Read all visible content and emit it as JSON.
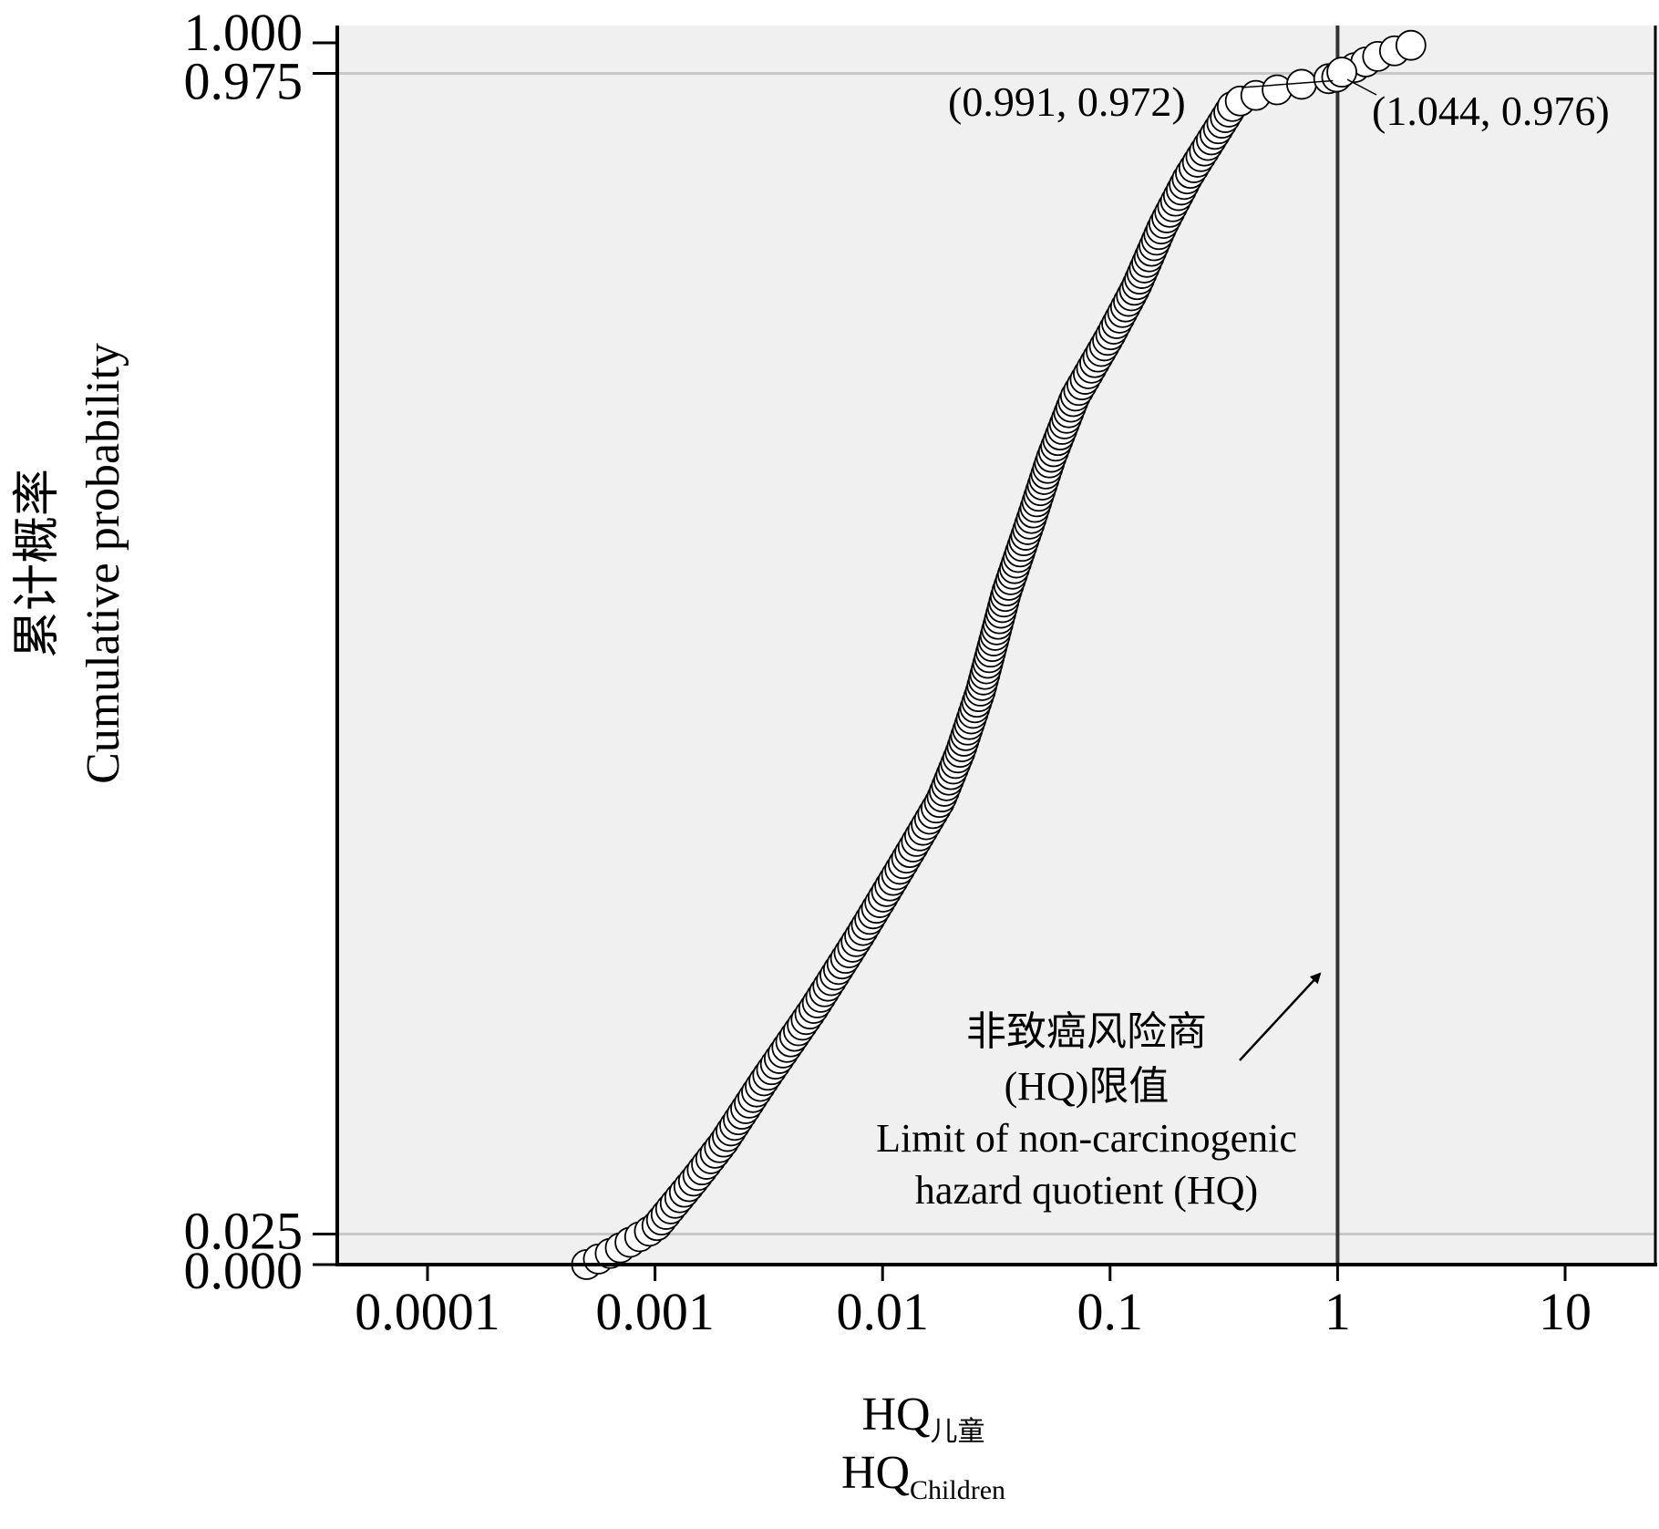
{
  "chart_data": {
    "type": "scatter",
    "title": "",
    "xscale": "log",
    "xlim": [
      5e-05,
      24
    ],
    "ylim": [
      0,
      1
    ],
    "x_ticks": [
      "0.0001",
      "0.001",
      "0.01",
      "0.1",
      "1",
      "10"
    ],
    "x_tick_values": [
      0.0001,
      0.001,
      0.01,
      0.1,
      1,
      10
    ],
    "y_ticks": [
      "1.000",
      "0.975",
      "0.025",
      "0.000"
    ],
    "y_tick_values": [
      1.0,
      0.975,
      0.025,
      0.0
    ],
    "xlabel": {
      "line1_main": "HQ",
      "line1_sub": "儿童",
      "line2_main": "HQ",
      "line2_sub": "Children"
    },
    "ylabel": {
      "line1": "累计概率",
      "line2": "Cumulative probability"
    },
    "reference_lines": {
      "horizontal": [
        0.025,
        0.975
      ],
      "vertical": [
        1
      ]
    },
    "annotations": {
      "left_point": {
        "x": 0.991,
        "y": 0.972,
        "label": "(0.991, 0.972)"
      },
      "right_point": {
        "x": 1.044,
        "y": 0.976,
        "label": "(1.044, 0.976)"
      },
      "limit_lines": [
        "非致癌风险商",
        "(HQ)限值",
        "Limit of non-carcinogenic",
        "hazard quotient (HQ)"
      ]
    },
    "background_color": "#f0f0f0",
    "reference_line_color": "#c8c8c8",
    "limit_line_color": "#333333",
    "marker": "open-circle",
    "cdf_anchors": [
      [
        0.0005,
        0.0
      ],
      [
        0.00065,
        0.01
      ],
      [
        0.001,
        0.03
      ],
      [
        0.0015,
        0.07
      ],
      [
        0.002,
        0.1
      ],
      [
        0.003,
        0.15
      ],
      [
        0.005,
        0.21
      ],
      [
        0.008,
        0.27
      ],
      [
        0.0125,
        0.33
      ],
      [
        0.018,
        0.38
      ],
      [
        0.022,
        0.42
      ],
      [
        0.027,
        0.47
      ],
      [
        0.035,
        0.55
      ],
      [
        0.045,
        0.61
      ],
      [
        0.055,
        0.66
      ],
      [
        0.07,
        0.71
      ],
      [
        0.1,
        0.76
      ],
      [
        0.13,
        0.8
      ],
      [
        0.17,
        0.85
      ],
      [
        0.22,
        0.89
      ],
      [
        0.3,
        0.93
      ],
      [
        0.35,
        0.95
      ],
      [
        0.4,
        0.955
      ],
      [
        0.5,
        0.96
      ],
      [
        0.65,
        0.965
      ],
      [
        0.991,
        0.972
      ],
      [
        1.044,
        0.976
      ],
      [
        1.2,
        0.98
      ],
      [
        1.45,
        0.988
      ],
      [
        1.75,
        0.993
      ],
      [
        2.1,
        0.998
      ]
    ],
    "n_points": 220
  }
}
